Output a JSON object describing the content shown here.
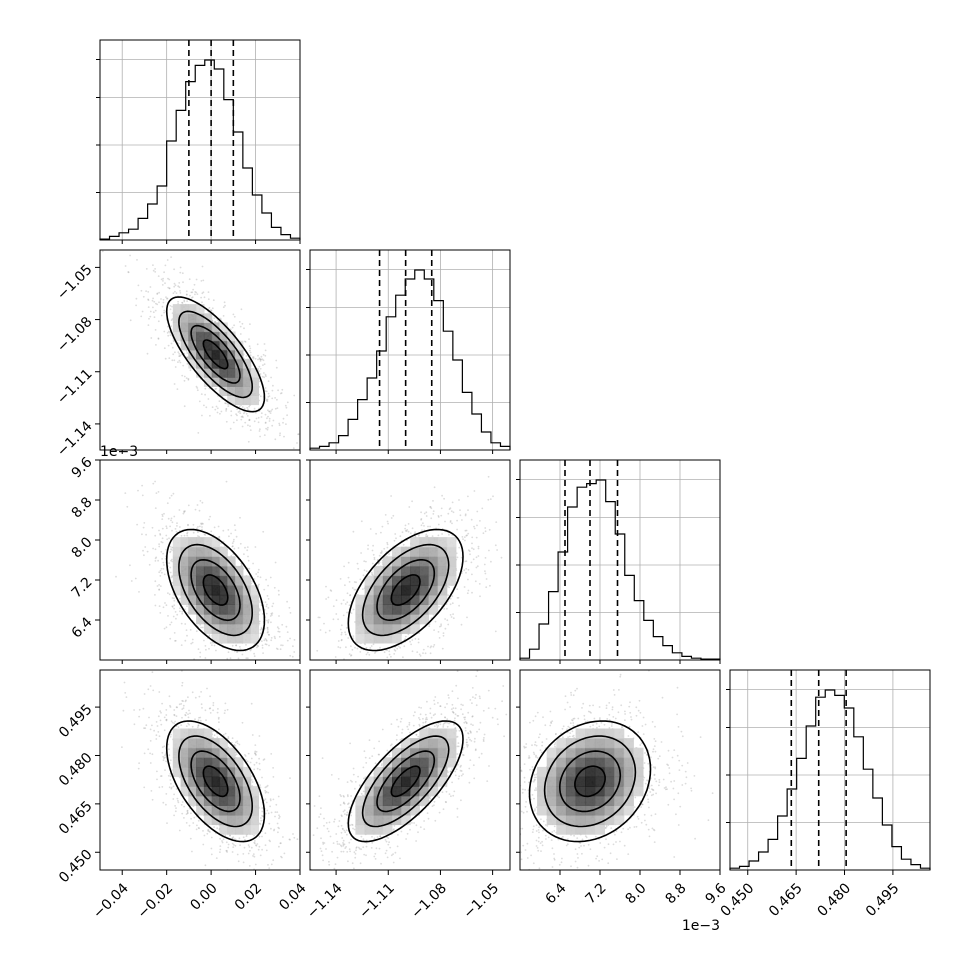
{
  "chart_data": {
    "type": "corner",
    "parameters": [
      {
        "range": [
          -0.05,
          0.04
        ],
        "ticks": [
          -0.04,
          -0.02,
          0.0,
          0.02,
          0.04
        ],
        "tick_labels": [
          "−0.04",
          "−0.02",
          "0.00",
          "0.02",
          "0.04"
        ],
        "offset_label": "",
        "quantiles": [
          -0.01,
          0.0,
          0.01
        ]
      },
      {
        "range": [
          -1.155,
          -1.04
        ],
        "ticks": [
          -1.14,
          -1.11,
          -1.08,
          -1.05
        ],
        "tick_labels": [
          "−1.14",
          "−1.11",
          "−1.08",
          "−1.05"
        ],
        "offset_label": "",
        "quantiles": [
          -1.115,
          -1.1,
          -1.085
        ]
      },
      {
        "range": [
          5.6,
          9.6
        ],
        "ticks": [
          6.4,
          7.2,
          8.0,
          8.8,
          9.6
        ],
        "tick_labels": [
          "6.4",
          "7.2",
          "8.0",
          "8.8",
          "9.6"
        ],
        "offset_label": "1e−3",
        "quantiles": [
          6.5,
          7.0,
          7.55
        ]
      },
      {
        "range": [
          0.4445,
          0.5065
        ],
        "ticks": [
          0.45,
          0.465,
          0.48,
          0.495
        ],
        "tick_labels": [
          "0.450",
          "0.465",
          "0.480",
          "0.495"
        ],
        "offset_label": "",
        "quantiles": [
          0.4635,
          0.472,
          0.4805
        ]
      }
    ],
    "histograms": [
      [
        0.005,
        0.02,
        0.04,
        0.06,
        0.12,
        0.2,
        0.3,
        0.55,
        0.72,
        0.88,
        0.97,
        1.0,
        0.95,
        0.78,
        0.6,
        0.4,
        0.25,
        0.15,
        0.07,
        0.03,
        0.01
      ],
      [
        0.01,
        0.02,
        0.04,
        0.08,
        0.17,
        0.28,
        0.4,
        0.55,
        0.74,
        0.86,
        0.95,
        1.0,
        0.95,
        0.83,
        0.66,
        0.5,
        0.32,
        0.2,
        0.1,
        0.04,
        0.02
      ],
      [
        0.01,
        0.06,
        0.2,
        0.38,
        0.6,
        0.85,
        0.96,
        0.98,
        1.0,
        0.88,
        0.7,
        0.47,
        0.33,
        0.22,
        0.13,
        0.08,
        0.04,
        0.02,
        0.01,
        0.005,
        0.005
      ],
      [
        0.01,
        0.02,
        0.05,
        0.1,
        0.17,
        0.3,
        0.45,
        0.62,
        0.8,
        0.96,
        1.0,
        0.97,
        0.9,
        0.74,
        0.56,
        0.4,
        0.25,
        0.13,
        0.06,
        0.03,
        0.01
      ]
    ],
    "pairs": [
      {
        "row": 1,
        "col": 0,
        "center": [
          0.002,
          -1.1
        ],
        "sigma": [
          0.01,
          0.015
        ],
        "corr": -0.75
      },
      {
        "row": 2,
        "col": 0,
        "center": [
          0.002,
          7.0
        ],
        "sigma": [
          0.01,
          0.55
        ],
        "corr": -0.5
      },
      {
        "row": 2,
        "col": 1,
        "center": [
          -1.1,
          7.0
        ],
        "sigma": [
          0.015,
          0.55
        ],
        "corr": 0.55
      },
      {
        "row": 3,
        "col": 0,
        "center": [
          0.002,
          0.472
        ],
        "sigma": [
          0.01,
          0.0085
        ],
        "corr": -0.55
      },
      {
        "row": 3,
        "col": 1,
        "center": [
          -1.1,
          0.472
        ],
        "sigma": [
          0.015,
          0.0085
        ],
        "corr": 0.7
      },
      {
        "row": 3,
        "col": 2,
        "center": [
          7.0,
          0.472
        ],
        "sigma": [
          0.55,
          0.0085
        ],
        "corr": 0.2
      }
    ],
    "contour_levels": [
      "0.5σ",
      "1σ",
      "1.5σ",
      "2σ"
    ],
    "grid": true,
    "colors": {
      "points": "#9a9a9a",
      "density_dark": "#111111",
      "lines": "#000000",
      "grid": "#b0b0b0"
    }
  }
}
